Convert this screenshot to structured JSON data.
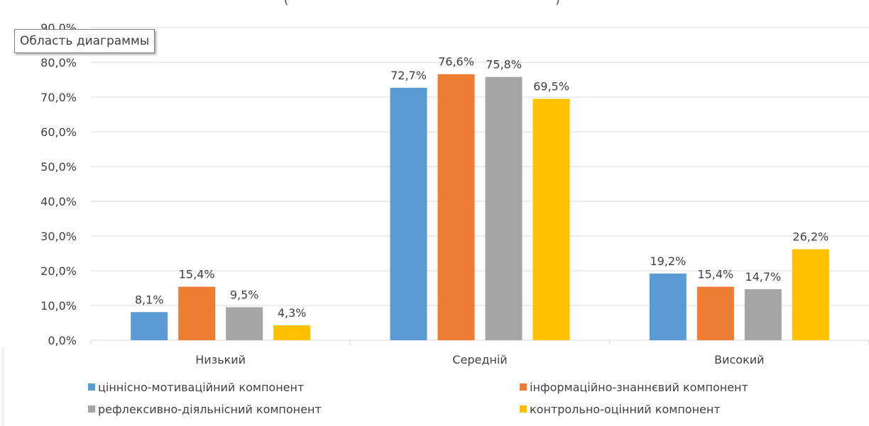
{
  "tooltip": "Область диаграммы",
  "title_fragment_left": "(",
  "title_fragment_right": ")",
  "chart_data": {
    "type": "bar",
    "categories": [
      "Низький",
      "Середній",
      "Високий"
    ],
    "series": [
      {
        "name": "ціннісно-мотиваційний компонент",
        "color": "#5b9bd5",
        "values": [
          8.1,
          72.7,
          19.2
        ],
        "labels": [
          "8,1%",
          "72,7%",
          "19,2%"
        ]
      },
      {
        "name": "інформаційно-знаннєвий компонент",
        "color": "#ed7d31",
        "values": [
          15.4,
          76.6,
          15.4
        ],
        "labels": [
          "15,4%",
          "76,6%",
          "15,4%"
        ]
      },
      {
        "name": "рефлексивно-діяльнісний компонент",
        "color": "#a5a5a5",
        "values": [
          9.5,
          75.8,
          14.7
        ],
        "labels": [
          "9,5%",
          "75,8%",
          "14,7%"
        ]
      },
      {
        "name": "контрольно-оцінний компонент",
        "color": "#ffc000",
        "values": [
          4.3,
          69.5,
          26.2
        ],
        "labels": [
          "4,3%",
          "69,5%",
          "26,2%"
        ]
      }
    ],
    "ylim": [
      0,
      90
    ],
    "yticks": [
      "0,0%",
      "10,0%",
      "20,0%",
      "30,0%",
      "40,0%",
      "50,0%",
      "60,0%",
      "70,0%",
      "80,0%",
      "90,0%"
    ],
    "grid": true,
    "legend_position": "bottom",
    "gridline_color": "#d9d9d9"
  }
}
